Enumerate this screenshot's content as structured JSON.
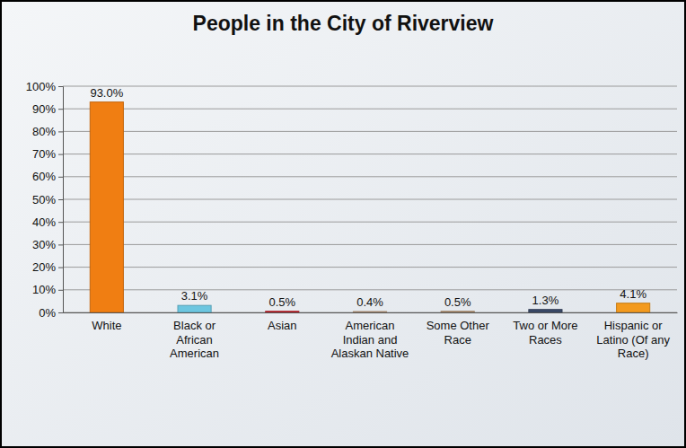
{
  "chart_data": {
    "type": "bar",
    "title": "People in the City of Riverview",
    "categories": [
      "White",
      "Black or African American",
      "Asian",
      "American Indian and Alaskan Native",
      "Some Other Race",
      "Two or More Races",
      "Hispanic or Latino (Of any Race)"
    ],
    "values": [
      93.0,
      3.1,
      0.5,
      0.4,
      0.5,
      1.3,
      4.1
    ],
    "value_labels": [
      "93.0%",
      "3.1%",
      "0.5%",
      "0.4%",
      "0.5%",
      "1.3%",
      "4.1%"
    ],
    "colors": [
      "#f07e12",
      "#6cc6e0",
      "#c8232c",
      "#c4a484",
      "#b89a7a",
      "#3b4a68",
      "#f39a1e"
    ],
    "ylim": [
      0,
      100
    ],
    "yticks": [
      {
        "value": 0,
        "label": "0%"
      },
      {
        "value": 10,
        "label": "10%"
      },
      {
        "value": 20,
        "label": "20%"
      },
      {
        "value": 30,
        "label": "30%"
      },
      {
        "value": 40,
        "label": "40%"
      },
      {
        "value": 50,
        "label": "50%"
      },
      {
        "value": 60,
        "label": "60%"
      },
      {
        "value": 70,
        "label": "70%"
      },
      {
        "value": 80,
        "label": "80%"
      },
      {
        "value": 90,
        "label": "90%"
      },
      {
        "value": 100,
        "label": "100%"
      }
    ],
    "grid": true,
    "data_labels": true
  }
}
